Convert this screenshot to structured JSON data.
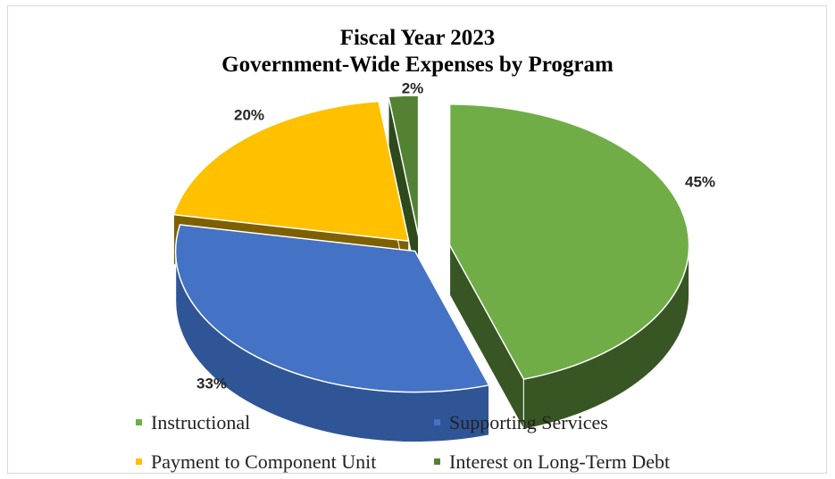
{
  "chart_data": {
    "type": "pie",
    "title": "Fiscal Year 2023",
    "subtitle": "Government-Wide Expenses by Program",
    "slices": [
      {
        "name": "Instructional",
        "value": 45,
        "label": "45%",
        "color": "#70ad47",
        "side_color": "#375623"
      },
      {
        "name": "Supporting Services",
        "value": 33,
        "label": "33%",
        "color": "#4472c4",
        "side_color": "#2f5597"
      },
      {
        "name": "Payment to Component Unit",
        "value": 20,
        "label": "20%",
        "color": "#ffc000",
        "side_color": "#7f6000"
      },
      {
        "name": "Interest on Long-Term Debt",
        "value": 2,
        "label": "2%",
        "color": "#548235",
        "side_color": "#2e4a1d"
      }
    ],
    "legend_position": "bottom",
    "exploded": true,
    "style": "3d"
  }
}
